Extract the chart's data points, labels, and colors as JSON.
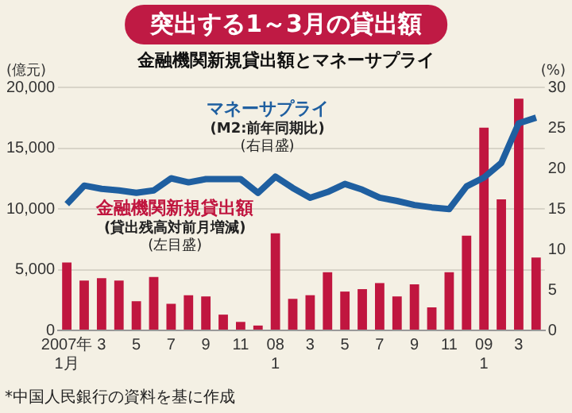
{
  "chart_data": {
    "type": "bar",
    "title": "突出する1～3月の貸出額",
    "subtitle": "金融機関新規貸出額とマネーサプライ",
    "ylabel": "(億元)",
    "y2label": "(%)",
    "annotations": [
      "(貸出残高対前月増減)",
      "(左目盛)",
      "(M2:前年同期比)",
      "(右目盛)",
      "*中国人民銀行の資料を基に作成"
    ],
    "categories": [
      "2007年\n1月",
      null,
      "3",
      null,
      "5",
      null,
      "7",
      null,
      "9",
      null,
      "11",
      null,
      "08\n1",
      null,
      "3",
      null,
      "5",
      null,
      "7",
      null,
      "9",
      null,
      "11",
      null,
      "09\n1",
      null,
      "3",
      null
    ],
    "series": [
      {
        "name": "金融機関新規貸出額",
        "color": "#c0163f",
        "values": [
          5600,
          4100,
          4300,
          4100,
          2400,
          4400,
          2200,
          2900,
          2800,
          1300,
          700,
          400,
          8000,
          2600,
          2900,
          4800,
          3200,
          3400,
          3900,
          2800,
          3800,
          1900,
          4800,
          7800,
          16700,
          10800,
          19100,
          6000
        ]
      },
      {
        "name": "マネーサプライ",
        "type": "line",
        "axis": "y2",
        "color": "#1f5fa0",
        "values": [
          15.6,
          17.9,
          17.5,
          17.3,
          17.0,
          17.3,
          18.8,
          18.3,
          18.7,
          18.7,
          18.7,
          17.0,
          19.0,
          17.6,
          16.4,
          17.1,
          18.1,
          17.4,
          16.4,
          16.0,
          15.5,
          15.2,
          15.0,
          17.8,
          18.9,
          20.7,
          25.6,
          26.3
        ]
      }
    ],
    "ylim": [
      0,
      20000
    ],
    "yticks": [
      0,
      {
        "value": 5000,
        "label": "5,000"
      },
      {
        "value": 10000,
        "label": "10,000"
      },
      {
        "value": 15000,
        "label": "15,000"
      },
      {
        "value": 20000,
        "label": "20,000"
      }
    ],
    "y2lim": [
      0,
      30
    ],
    "y2ticks": [
      0,
      5,
      10,
      15,
      20,
      25,
      30
    ],
    "grid": "y",
    "legend": false
  }
}
